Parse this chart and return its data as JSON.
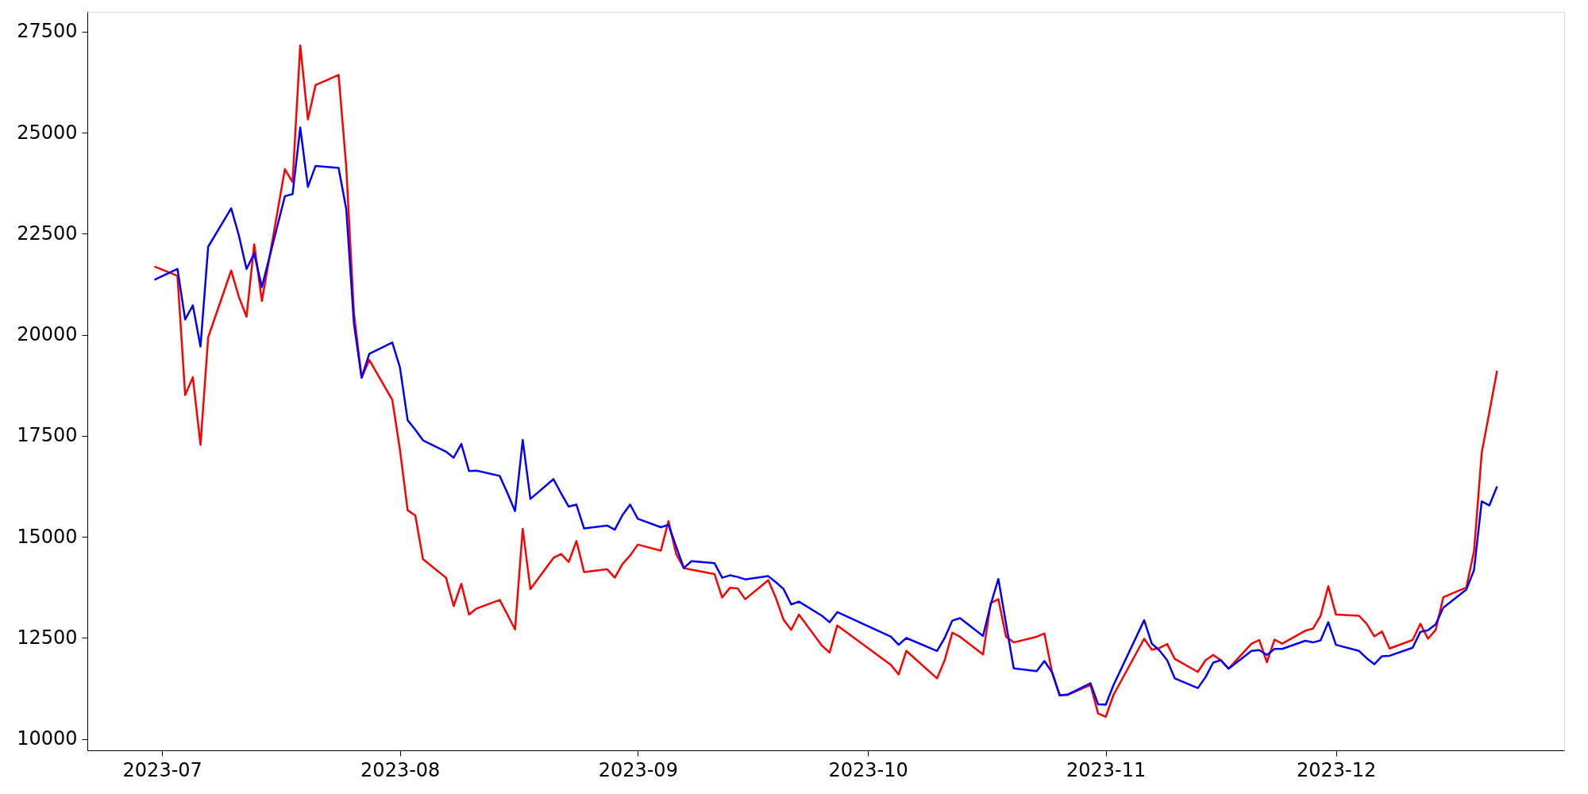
{
  "chart_data": {
    "type": "line",
    "x": [
      "2023-06-30",
      "2023-07-03",
      "2023-07-04",
      "2023-07-05",
      "2023-07-06",
      "2023-07-07",
      "2023-07-10",
      "2023-07-11",
      "2023-07-12",
      "2023-07-13",
      "2023-07-14",
      "2023-07-17",
      "2023-07-18",
      "2023-07-19",
      "2023-07-20",
      "2023-07-21",
      "2023-07-24",
      "2023-07-25",
      "2023-07-26",
      "2023-07-27",
      "2023-07-28",
      "2023-07-31",
      "2023-08-01",
      "2023-08-02",
      "2023-08-03",
      "2023-08-04",
      "2023-08-07",
      "2023-08-08",
      "2023-08-09",
      "2023-08-10",
      "2023-08-11",
      "2023-08-14",
      "2023-08-15",
      "2023-08-16",
      "2023-08-17",
      "2023-08-18",
      "2023-08-21",
      "2023-08-22",
      "2023-08-23",
      "2023-08-24",
      "2023-08-25",
      "2023-08-28",
      "2023-08-29",
      "2023-08-30",
      "2023-08-31",
      "2023-09-01",
      "2023-09-04",
      "2023-09-05",
      "2023-09-06",
      "2023-09-07",
      "2023-09-08",
      "2023-09-11",
      "2023-09-12",
      "2023-09-13",
      "2023-09-14",
      "2023-09-15",
      "2023-09-18",
      "2023-09-19",
      "2023-09-20",
      "2023-09-21",
      "2023-09-22",
      "2023-09-25",
      "2023-09-26",
      "2023-09-27",
      "2023-10-04",
      "2023-10-05",
      "2023-10-06",
      "2023-10-10",
      "2023-10-11",
      "2023-10-12",
      "2023-10-13",
      "2023-10-16",
      "2023-10-17",
      "2023-10-18",
      "2023-10-19",
      "2023-10-20",
      "2023-10-23",
      "2023-10-24",
      "2023-10-25",
      "2023-10-26",
      "2023-10-27",
      "2023-10-30",
      "2023-10-31",
      "2023-11-01",
      "2023-11-02",
      "2023-11-06",
      "2023-11-07",
      "2023-11-08",
      "2023-11-09",
      "2023-11-10",
      "2023-11-13",
      "2023-11-14",
      "2023-11-15",
      "2023-11-16",
      "2023-11-17",
      "2023-11-20",
      "2023-11-21",
      "2023-11-22",
      "2023-11-23",
      "2023-11-24",
      "2023-11-27",
      "2023-11-28",
      "2023-11-29",
      "2023-11-30",
      "2023-12-01",
      "2023-12-04",
      "2023-12-05",
      "2023-12-06",
      "2023-12-07",
      "2023-12-08",
      "2023-12-11",
      "2023-12-12",
      "2023-12-13",
      "2023-12-14",
      "2023-12-15",
      "2023-12-18",
      "2023-12-19",
      "2023-12-20",
      "2023-12-21",
      "2023-12-22"
    ],
    "series": [
      {
        "color": "#ff0000",
        "values": [
          21690,
          21460,
          18510,
          18950,
          17280,
          19940,
          21590,
          20940,
          20450,
          22240,
          20840,
          24100,
          23780,
          27160,
          25330,
          26180,
          26430,
          24150,
          20530,
          18940,
          19380,
          18390,
          17150,
          15660,
          15530,
          14450,
          13990,
          13290,
          13840,
          13080,
          13230,
          13440,
          13080,
          12710,
          15200,
          13710,
          14480,
          14580,
          14380,
          14900,
          14130,
          14200,
          13990,
          14330,
          14540,
          14810,
          14660,
          15390,
          14580,
          14230,
          14190,
          14080,
          13500,
          13740,
          13730,
          13460,
          13930,
          13490,
          12950,
          12700,
          13080,
          12310,
          12140,
          12810,
          11830,
          11600,
          12180,
          11500,
          11950,
          12630,
          12530,
          12090,
          13360,
          13460,
          12530,
          12390,
          12530,
          12610,
          11650,
          11080,
          11090,
          11340,
          10630,
          10550,
          11090,
          12480,
          12210,
          12250,
          12350,
          11980,
          11660,
          11950,
          12080,
          11950,
          11740,
          12360,
          12450,
          11900,
          12460,
          12360,
          12680,
          12730,
          13050,
          13780,
          13080,
          13050,
          12850,
          12540,
          12660,
          12240,
          12450,
          12850,
          12480,
          12700,
          13510,
          13750,
          14650,
          17080,
          18090,
          19110
        ]
      },
      {
        "color": "#0000ff",
        "values": [
          21360,
          21630,
          20380,
          20730,
          19710,
          22180,
          23130,
          22460,
          21630,
          22010,
          21180,
          23430,
          23480,
          25130,
          23660,
          24180,
          24130,
          23110,
          20280,
          18940,
          19530,
          19810,
          19190,
          17890,
          17650,
          17390,
          17110,
          16960,
          17300,
          16630,
          16640,
          16510,
          16090,
          15640,
          17400,
          15940,
          16430,
          16080,
          15750,
          15800,
          15210,
          15280,
          15180,
          15540,
          15800,
          15450,
          15240,
          15300,
          14760,
          14230,
          14400,
          14350,
          13990,
          14050,
          14010,
          13950,
          14030,
          13880,
          13710,
          13330,
          13400,
          13050,
          12890,
          13140,
          12530,
          12330,
          12500,
          12180,
          12500,
          12930,
          12990,
          12550,
          13330,
          13960,
          12850,
          11750,
          11680,
          11930,
          11650,
          11080,
          11100,
          11380,
          10860,
          10850,
          11330,
          12940,
          12360,
          12190,
          11950,
          11500,
          11260,
          11530,
          11890,
          11950,
          11740,
          12180,
          12200,
          12080,
          12230,
          12230,
          12430,
          12390,
          12440,
          12890,
          12330,
          12180,
          12000,
          11850,
          12050,
          12060,
          12260,
          12650,
          12690,
          12840,
          13250,
          13700,
          14180,
          15880,
          15780,
          16250
        ]
      }
    ],
    "xlim": [
      "2023-06-21T06:00",
      "2023-12-30T18:00"
    ],
    "xticks": [
      {
        "value": "2023-07-01",
        "label": "2023-07"
      },
      {
        "value": "2023-08-01",
        "label": "2023-08"
      },
      {
        "value": "2023-09-01",
        "label": "2023-09"
      },
      {
        "value": "2023-10-01",
        "label": "2023-10"
      },
      {
        "value": "2023-11-01",
        "label": "2023-11"
      },
      {
        "value": "2023-12-01",
        "label": "2023-12"
      }
    ],
    "ylim": [
      9720,
      27990
    ],
    "yticks": [
      10000,
      12500,
      15000,
      17500,
      20000,
      22500,
      25000,
      27500
    ],
    "grid": false,
    "legend": false,
    "marker": "none",
    "line_style": "solid"
  }
}
